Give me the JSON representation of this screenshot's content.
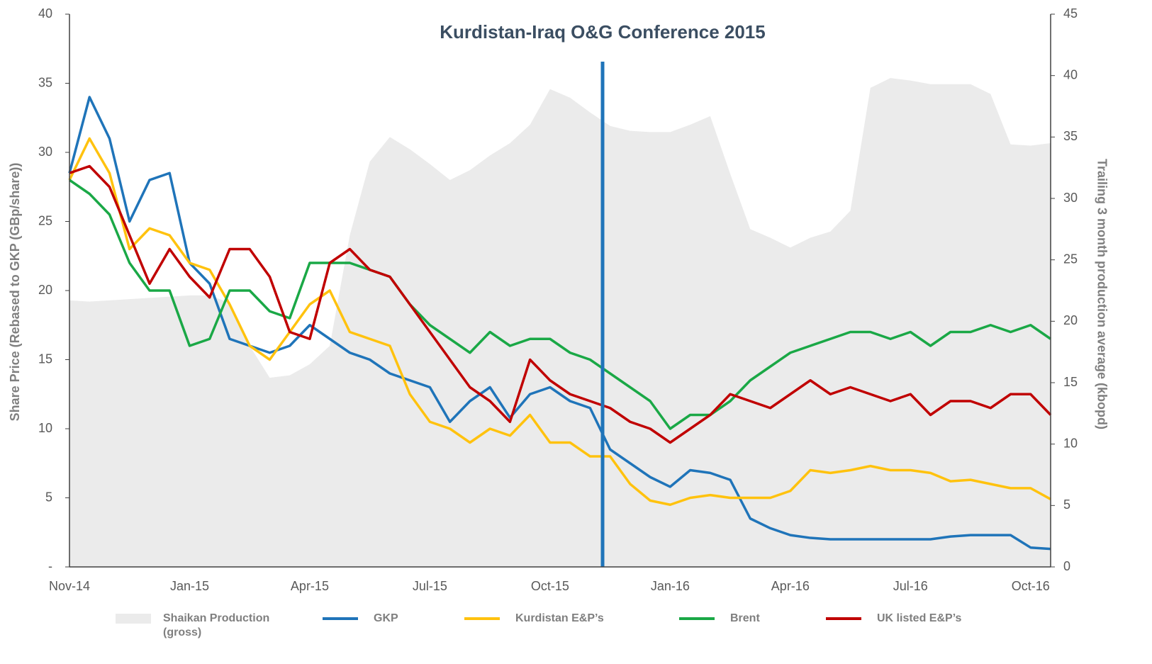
{
  "chart_data": {
    "type": "line",
    "title": "Kurdistan-Iraq O&G Conference 2015",
    "ylabel": "Share Price (Rebased to GKP (GBp/share))",
    "y2label": "Trailing 3 month production average (kbopd)",
    "categories": [
      "Nov-14",
      null,
      null,
      null,
      null,
      null,
      "Jan-15",
      null,
      null,
      null,
      null,
      null,
      "Apr-15",
      null,
      null,
      null,
      null,
      null,
      "Jul-15",
      null,
      null,
      null,
      null,
      null,
      "Oct-15",
      null,
      null,
      null,
      null,
      null,
      "Jan-16",
      null,
      null,
      null,
      null,
      null,
      "Apr-16",
      null,
      null,
      null,
      null,
      null,
      "Jul-16",
      null,
      null,
      null,
      null,
      null,
      "Oct-16",
      null
    ],
    "ylim": [
      0,
      40
    ],
    "yticks": [
      {
        "value": 0,
        "label": "-"
      },
      5,
      10,
      15,
      20,
      25,
      30,
      35,
      40
    ],
    "y2lim": [
      0,
      45
    ],
    "y2ticks": [
      0,
      5,
      10,
      15,
      20,
      25,
      30,
      35,
      40,
      45
    ],
    "series": [
      {
        "name": "Shaikan Production (gross)",
        "type": "area",
        "axis": "y2",
        "color": "#ebebeb",
        "values": [
          21.7,
          21.6,
          21.7,
          21.8,
          21.9,
          22,
          22.1,
          22.1,
          21.5,
          18,
          15.4,
          15.6,
          16.5,
          18,
          27,
          33,
          35,
          34,
          32.8,
          31.5,
          32.3,
          33.5,
          34.5,
          36,
          38.9,
          38.2,
          37,
          35.9,
          35.5,
          35.4,
          35.4,
          36,
          36.7,
          32,
          27.5,
          26.8,
          26,
          26.8,
          27.3,
          29,
          39,
          39.8,
          39.6,
          39.3,
          39.3,
          39.3,
          38.5,
          34.4,
          34.3,
          34.5
        ]
      },
      {
        "name": "GKP",
        "color": "#1f74b9",
        "values": [
          28.5,
          34,
          31,
          25,
          28,
          28.5,
          22,
          20.5,
          16.5,
          16,
          15.5,
          16,
          17.5,
          16.5,
          15.5,
          15,
          14,
          13.5,
          13,
          10.5,
          12,
          13,
          10.8,
          12.5,
          13,
          12,
          11.5,
          8.5,
          7.5,
          6.5,
          5.8,
          7,
          6.8,
          6.3,
          3.5,
          2.8,
          2.3,
          2.1,
          2,
          2,
          2,
          2,
          2,
          2,
          2.2,
          2.3,
          2.3,
          2.3,
          1.4,
          1.3
        ]
      },
      {
        "name": "Kurdistan E&P’s",
        "color": "#ffc20e",
        "values": [
          28,
          31,
          28.5,
          23,
          24.5,
          24,
          22,
          21.5,
          19,
          16,
          15,
          17,
          19,
          20,
          17,
          16.5,
          16,
          12.5,
          10.5,
          10,
          9,
          10,
          9.5,
          11,
          9,
          9,
          8,
          8,
          6,
          4.8,
          4.5,
          5,
          5.2,
          5,
          5,
          5,
          5.5,
          7,
          6.8,
          7,
          7.3,
          7,
          7,
          6.8,
          6.2,
          6.3,
          6,
          5.7,
          5.7,
          4.9
        ]
      },
      {
        "name": "Brent",
        "color": "#1aa846",
        "values": [
          28,
          27,
          25.5,
          22,
          20,
          20,
          16,
          16.5,
          20,
          20,
          18.5,
          18,
          22,
          22,
          22,
          21.5,
          21,
          19,
          17.5,
          16.5,
          15.5,
          17,
          16,
          16.5,
          16.5,
          15.5,
          15,
          14,
          13,
          12,
          10,
          11,
          11,
          12,
          13.5,
          14.5,
          15.5,
          16,
          16.5,
          17,
          17,
          16.5,
          17,
          16,
          17,
          17,
          17.5,
          17,
          17.5,
          16.5
        ]
      },
      {
        "name": "UK listed E&P’s",
        "color": "#c00000",
        "values": [
          28.5,
          29,
          27.5,
          24,
          20.5,
          23,
          21,
          19.5,
          23,
          23,
          21,
          17,
          16.5,
          22,
          23,
          21.5,
          21,
          19,
          17,
          15,
          13,
          12,
          10.5,
          15,
          13.5,
          12.5,
          12,
          11.5,
          10.5,
          10,
          9,
          10,
          11,
          12.5,
          12,
          11.5,
          12.5,
          13.5,
          12.5,
          13,
          12.5,
          12,
          12.5,
          11,
          12,
          12,
          11.5,
          12.5,
          12.5,
          11
        ]
      }
    ]
  }
}
